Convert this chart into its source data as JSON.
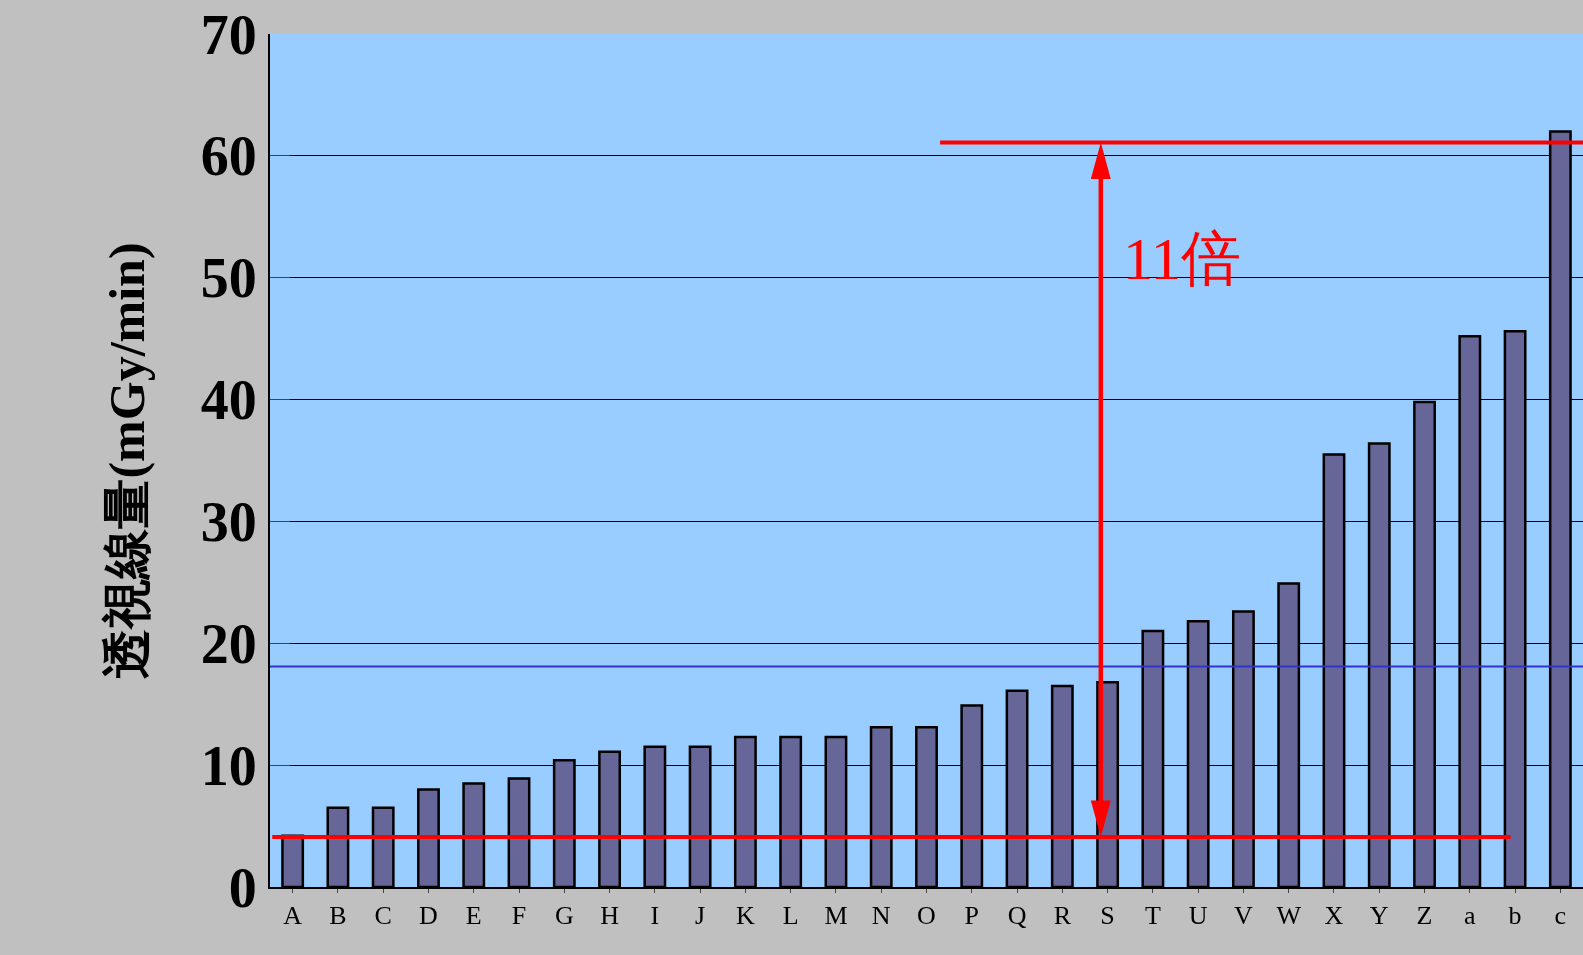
{
  "chart_data": {
    "type": "bar",
    "ylabel": "透視線量(mGy/min)",
    "categories": [
      "A",
      "B",
      "C",
      "D",
      "E",
      "F",
      "G",
      "H",
      "I",
      "J",
      "K",
      "L",
      "M",
      "N",
      "O",
      "P",
      "Q",
      "R",
      "S",
      "T",
      "U",
      "V",
      "W",
      "X",
      "Y",
      "Z",
      "a",
      "b",
      "c"
    ],
    "values": [
      4.2,
      6.5,
      6.5,
      8.0,
      8.5,
      8.9,
      10.4,
      11.1,
      11.5,
      11.5,
      12.3,
      12.3,
      12.3,
      13.1,
      13.1,
      14.9,
      16.1,
      16.5,
      16.8,
      21.0,
      21.8,
      22.6,
      24.9,
      35.5,
      36.4,
      39.8,
      45.2,
      45.6,
      62.0
    ],
    "color": "#666699",
    "ylim": [
      0,
      70
    ],
    "yticks": [
      0,
      10,
      20,
      30,
      40,
      50,
      60,
      70
    ],
    "grid": "y",
    "ref_lines": [
      {
        "axis": "y",
        "value": 61.1,
        "color": "#ff0000"
      },
      {
        "axis": "y",
        "value": 4.1,
        "color": "#ff0000"
      },
      {
        "axis": "y",
        "value": 18.1,
        "color": "#3333cc"
      }
    ],
    "annotations": [
      "11倍"
    ]
  }
}
